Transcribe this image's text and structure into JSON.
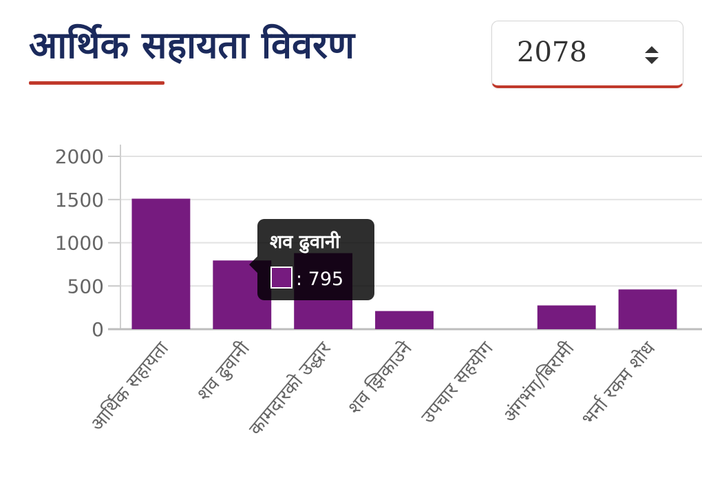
{
  "header": {
    "title": "आर्थिक सहायता विवरण",
    "year_select": {
      "value": "2078",
      "icon": "sort-arrows-icon"
    }
  },
  "colors": {
    "title": "#1b2a5c",
    "accent": "#c0392b",
    "bar": "#761b7f"
  },
  "chart_data": {
    "type": "bar",
    "categories": [
      "आर्थिक सहायता",
      "शव ढुवानी",
      "कामदारको उद्धार",
      "शव झिकाउने",
      "उपचार सहयोग",
      "अंगभंग/बिरामी",
      "भर्ना रकम शोध"
    ],
    "values": [
      1510,
      795,
      880,
      210,
      0,
      275,
      460
    ],
    "yticks": [
      "2000",
      "1500",
      "1000",
      "500",
      "0"
    ],
    "ylim": [
      0,
      2000
    ],
    "grid": true,
    "legend": "none",
    "tooltip": {
      "category": "शव ढुवानी",
      "value_text": ": 795"
    }
  }
}
